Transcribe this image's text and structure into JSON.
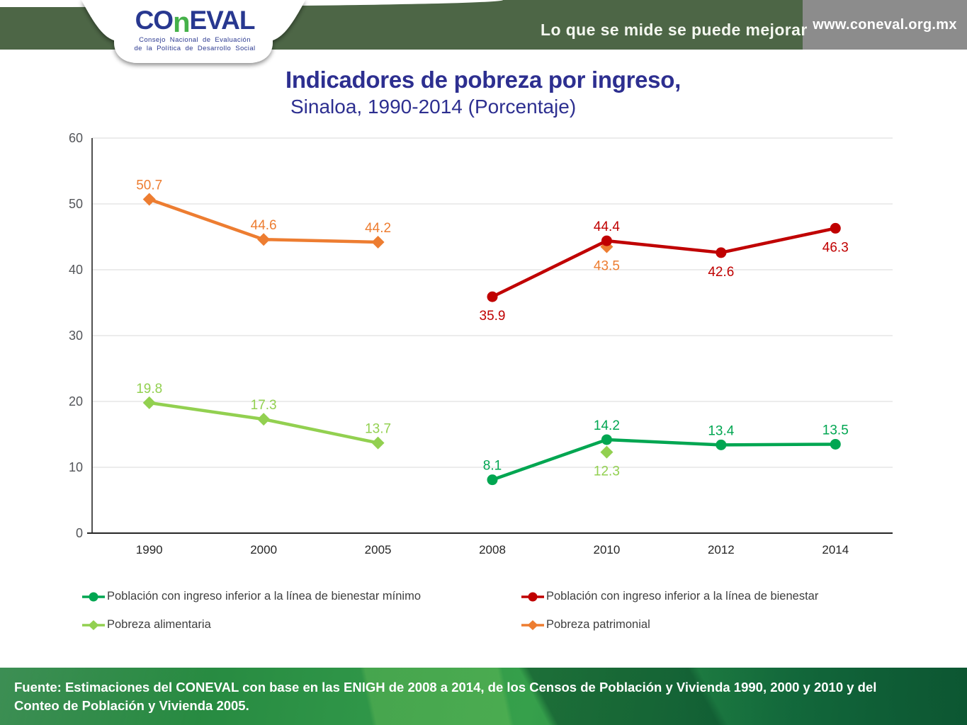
{
  "header": {
    "logo": {
      "word_co": "CO",
      "word_n": "n",
      "word_eval": "EVAL",
      "caption_line1": "Consejo Nacional de Evaluación",
      "caption_line2": "de la Política de Desarrollo Social"
    },
    "tagline": "Lo que se mide se puede mejorar",
    "url": "www.coneval.org.mx",
    "colors": {
      "band": "#4D6646",
      "url_box": "#8C8C8C",
      "logo_blue": "#283890",
      "logo_green": "#45B149"
    }
  },
  "title": {
    "main": "Indicadores de pobreza por ingreso,",
    "sub": "Sinaloa, 1990-2014 (Porcentaje)",
    "color": "#2D2F90"
  },
  "chart_data": {
    "type": "line",
    "title": "Indicadores de pobreza por ingreso, Sinaloa, 1990-2014 (Porcentaje)",
    "categories": [
      "1990",
      "2000",
      "2005",
      "2008",
      "2010",
      "2012",
      "2014"
    ],
    "xlabel": "",
    "ylabel": "",
    "ylim": [
      0,
      60
    ],
    "ytick_step": 10,
    "grid": true,
    "grid_color": "#D9D9D9",
    "axis_color": "#262626",
    "legend_position": "bottom",
    "series": [
      {
        "name": "Pobreza patrimonial",
        "color": "#ED7D31",
        "marker": "diamond",
        "values": [
          50.7,
          44.6,
          44.2,
          null,
          43.5,
          null,
          null
        ],
        "label_pos": [
          "above",
          "above",
          "above",
          null,
          "below",
          null,
          null
        ]
      },
      {
        "name": "Pobreza alimentaria",
        "color": "#92D050",
        "marker": "diamond",
        "values": [
          19.8,
          17.3,
          13.7,
          null,
          12.3,
          null,
          null
        ],
        "label_pos": [
          "above",
          "above",
          "above",
          null,
          "below",
          null,
          null
        ]
      },
      {
        "name": "Población con ingreso inferior a la línea de bienestar",
        "color": "#C00000",
        "marker": "circle",
        "values": [
          null,
          null,
          null,
          35.9,
          44.4,
          42.6,
          46.3
        ],
        "label_pos": [
          null,
          null,
          null,
          "below",
          "above",
          "below",
          "below"
        ]
      },
      {
        "name": "Población con ingreso inferior a la línea de bienestar mínimo",
        "color": "#00A651",
        "marker": "circle",
        "values": [
          null,
          null,
          null,
          8.1,
          14.2,
          13.4,
          13.5
        ],
        "label_pos": [
          null,
          null,
          null,
          "above",
          "above",
          "above",
          "above"
        ]
      }
    ]
  },
  "legend": {
    "rows": [
      [
        {
          "label": "Población con ingreso inferior a la línea de bienestar mínimo",
          "color": "#00A651",
          "marker": "circle"
        },
        {
          "label": "Población con ingreso inferior a la línea de bienestar",
          "color": "#C00000",
          "marker": "circle"
        }
      ],
      [
        {
          "label": "Pobreza alimentaria",
          "color": "#92D050",
          "marker": "diamond"
        },
        {
          "label": "Pobreza patrimonial",
          "color": "#ED7D31",
          "marker": "diamond"
        }
      ]
    ]
  },
  "footer": {
    "source_line1": "Fuente: Estimaciones del CONEVAL con base en las ENIGH de 2008 a 2014, de los Censos de Población y Vivienda 1990, 2000 y 2010 y del",
    "source_line2": "Conteo de Población y Vivienda 2005."
  }
}
